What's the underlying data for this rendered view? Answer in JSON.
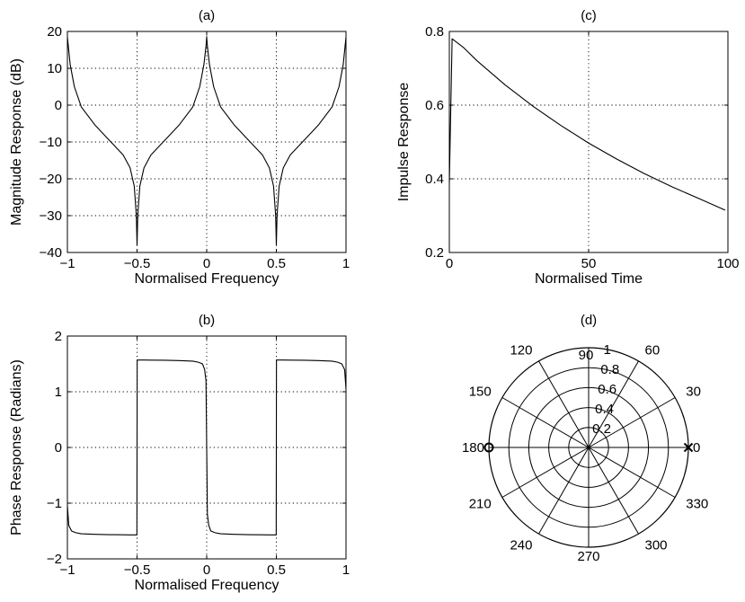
{
  "chart_data": [
    {
      "id": "a",
      "type": "line",
      "title": "(a)",
      "xlabel": "Normalised Frequency",
      "ylabel": "Magnitude Response (dB)",
      "xlim": [
        -1,
        1
      ],
      "ylim": [
        -40,
        20
      ],
      "xticks": [
        -1,
        -0.5,
        0,
        0.5,
        1
      ],
      "xtick_labels": [
        "−1",
        "−0.5",
        "0",
        "0.5",
        "1"
      ],
      "yticks": [
        -40,
        -30,
        -20,
        -10,
        0,
        10,
        20
      ],
      "ytick_labels": [
        "−40",
        "−30",
        "−20",
        "−10",
        "0",
        "10",
        "20"
      ],
      "grid": true,
      "series": [
        {
          "x": [
            -1,
            -0.98,
            -0.95,
            -0.9,
            -0.8,
            -0.7,
            -0.6,
            -0.55,
            -0.52,
            -0.505,
            -0.5,
            -0.495,
            -0.48,
            -0.45,
            -0.4,
            -0.3,
            -0.2,
            -0.1,
            -0.05,
            -0.02,
            -0.005,
            0,
            0.005,
            0.02,
            0.05,
            0.1,
            0.2,
            0.3,
            0.4,
            0.45,
            0.48,
            0.495,
            0.5,
            0.505,
            0.52,
            0.55,
            0.6,
            0.7,
            0.8,
            0.9,
            0.95,
            0.98,
            1
          ],
          "y": [
            18.5,
            11,
            5,
            -0.5,
            -5.5,
            -9.5,
            -13.5,
            -17,
            -22,
            -30,
            -38,
            -30,
            -22,
            -17,
            -13.5,
            -9.5,
            -5.5,
            -0.5,
            5,
            11,
            16,
            18.5,
            16,
            11,
            5,
            -0.5,
            -5.5,
            -9.5,
            -13.5,
            -17,
            -22,
            -30,
            -38,
            -30,
            -22,
            -17,
            -13.5,
            -9.5,
            -5.5,
            -0.5,
            5,
            11,
            18.5
          ]
        }
      ]
    },
    {
      "id": "b",
      "type": "line",
      "title": "(b)",
      "xlabel": "Normalised Frequency",
      "ylabel": "Phase Response (Radians)",
      "xlim": [
        -1,
        1
      ],
      "ylim": [
        -2,
        2
      ],
      "xticks": [
        -1,
        -0.5,
        0,
        0.5,
        1
      ],
      "xtick_labels": [
        "−1",
        "−0.5",
        "0",
        "0.5",
        "1"
      ],
      "yticks": [
        -2,
        -1,
        0,
        1,
        2
      ],
      "ytick_labels": [
        "−2",
        "−1",
        "0",
        "1",
        "2"
      ],
      "grid": true,
      "series": [
        {
          "x": [
            -1,
            -0.99,
            -0.97,
            -0.94,
            -0.9,
            -0.8,
            -0.7,
            -0.6,
            -0.55,
            -0.51,
            -0.501,
            -0.499,
            -0.49,
            -0.45,
            -0.4,
            -0.3,
            -0.2,
            -0.1,
            -0.06,
            -0.03,
            -0.015,
            -0.005,
            0,
            0.005,
            0.015,
            0.03,
            0.06,
            0.1,
            0.2,
            0.3,
            0.4,
            0.45,
            0.49,
            0.499,
            0.501,
            0.51,
            0.55,
            0.6,
            0.7,
            0.8,
            0.9,
            0.94,
            0.97,
            0.99,
            1
          ],
          "y": [
            -1.05,
            -1.4,
            -1.5,
            -1.53,
            -1.55,
            -1.56,
            -1.565,
            -1.568,
            -1.569,
            -1.57,
            -1.57,
            1.57,
            1.57,
            1.569,
            1.568,
            1.565,
            1.56,
            1.55,
            1.53,
            1.5,
            1.4,
            1.2,
            0,
            -1.2,
            -1.4,
            -1.5,
            -1.53,
            -1.55,
            -1.56,
            -1.565,
            -1.568,
            -1.569,
            -1.57,
            -1.57,
            1.57,
            1.57,
            1.569,
            1.568,
            1.565,
            1.56,
            1.55,
            1.53,
            1.5,
            1.4,
            1.05
          ]
        }
      ]
    },
    {
      "id": "c",
      "type": "line",
      "title": "(c)",
      "xlabel": "Normalised Time",
      "ylabel": "Impulse Response",
      "xlim": [
        0,
        100
      ],
      "ylim": [
        0.2,
        0.8
      ],
      "xticks": [
        0,
        50,
        100
      ],
      "xtick_labels": [
        "0",
        "50",
        "100"
      ],
      "yticks": [
        0.2,
        0.4,
        0.6,
        0.8
      ],
      "ytick_labels": [
        "0.2",
        "0.4",
        "0.6",
        "0.8"
      ],
      "grid": true,
      "series": [
        {
          "x": [
            0,
            1,
            5,
            10,
            20,
            30,
            40,
            50,
            60,
            70,
            80,
            90,
            99
          ],
          "y": [
            0.39,
            0.78,
            0.757,
            0.72,
            0.655,
            0.597,
            0.545,
            0.497,
            0.454,
            0.414,
            0.378,
            0.345,
            0.315
          ]
        }
      ]
    },
    {
      "id": "d",
      "type": "scatter",
      "title": "(d)",
      "polar": true,
      "radial_ticks": [
        "0.2",
        "0.4",
        "0.6",
        "0.8",
        "1"
      ],
      "rmax": 1,
      "angle_ticks": [
        0,
        30,
        60,
        90,
        120,
        150,
        180,
        210,
        240,
        270,
        300,
        330
      ],
      "angle_tick_labels": [
        "0",
        "30",
        "60",
        "90",
        "120",
        "150",
        "180",
        "210",
        "240",
        "270",
        "300",
        "330"
      ],
      "markers": [
        {
          "marker": "x",
          "r": 1,
          "theta": 0
        },
        {
          "marker": "o",
          "r": 1,
          "theta": 180
        }
      ]
    }
  ]
}
